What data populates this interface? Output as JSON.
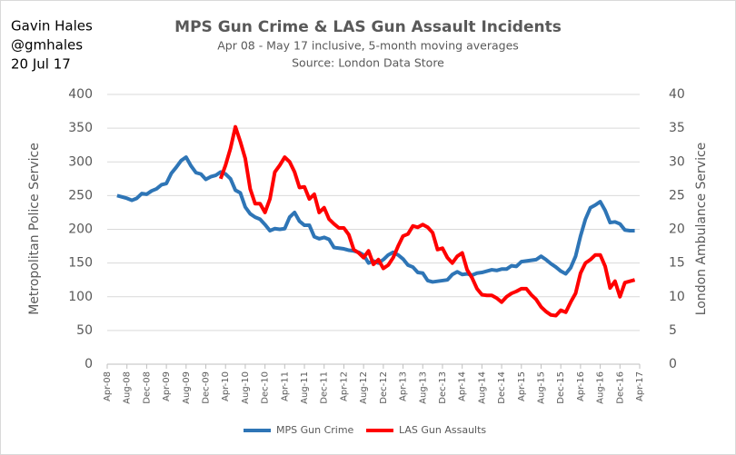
{
  "chart_data": {
    "type": "line",
    "title": "MPS Gun Crime & LAS Gun Assault Incidents",
    "subtitle": [
      "Apr 08 - May 17 inclusive, 5-month moving averages",
      "Source: London Data Store"
    ],
    "author": [
      "Gavin Hales",
      "@gmhales",
      "20 Jul 17"
    ],
    "ylabel": "Metropolitan Police Service",
    "y2label": "London Ambulance Service",
    "categories": [
      "Apr-08",
      null,
      null,
      null,
      "Aug-08",
      null,
      null,
      null,
      "Dec-08",
      null,
      null,
      null,
      "Apr-09",
      null,
      null,
      null,
      "Aug-09",
      null,
      null,
      null,
      "Dec-09",
      null,
      null,
      null,
      "Apr-10",
      null,
      null,
      null,
      "Aug-10",
      null,
      null,
      null,
      "Dec-10",
      null,
      null,
      null,
      "Apr-11",
      null,
      null,
      null,
      "Aug-11",
      null,
      null,
      null,
      "Dec-11",
      null,
      null,
      null,
      "Apr-12",
      null,
      null,
      null,
      "Aug-12",
      null,
      null,
      null,
      "Dec-12",
      null,
      null,
      null,
      "Apr-13",
      null,
      null,
      null,
      "Aug-13",
      null,
      null,
      null,
      "Dec-13",
      null,
      null,
      null,
      "Apr-14",
      null,
      null,
      null,
      "Aug-14",
      null,
      null,
      null,
      "Dec-14",
      null,
      null,
      null,
      "Apr-15",
      null,
      null,
      null,
      "Aug-15",
      null,
      null,
      null,
      "Dec-15",
      null,
      null,
      null,
      "Apr-16",
      null,
      null,
      null,
      "Aug-16",
      null,
      null,
      null,
      "Dec-16",
      null,
      null,
      null,
      "Apr-17"
    ],
    "series": [
      {
        "name": "MPS Gun Crime",
        "color": "#2e75b6",
        "axis": "y",
        "values": [
          null,
          null,
          250,
          248,
          246,
          243,
          246,
          253,
          252,
          257,
          260,
          266,
          268,
          283,
          292,
          302,
          307,
          294,
          284,
          282,
          274,
          278,
          280,
          285,
          282,
          275,
          258,
          254,
          233,
          223,
          218,
          215,
          207,
          198,
          201,
          200,
          201,
          218,
          225,
          212,
          206,
          206,
          189,
          186,
          188,
          185,
          173,
          172,
          171,
          169,
          168,
          166,
          162,
          150,
          153,
          150,
          155,
          162,
          166,
          162,
          156,
          147,
          144,
          136,
          135,
          124,
          122,
          123,
          124,
          125,
          133,
          137,
          133,
          134,
          132,
          135,
          136,
          138,
          140,
          139,
          141,
          141,
          146,
          145,
          152,
          153,
          154,
          155,
          160,
          155,
          149,
          144,
          138,
          134,
          143,
          160,
          190,
          215,
          232,
          236,
          241,
          228,
          210,
          211,
          208,
          199,
          198,
          198,
          null
        ]
      },
      {
        "name": "LAS Gun Assaults",
        "color": "#ff0000",
        "axis": "y2",
        "values": [
          null,
          null,
          null,
          null,
          null,
          null,
          null,
          null,
          null,
          null,
          null,
          null,
          null,
          null,
          null,
          null,
          null,
          null,
          null,
          null,
          null,
          null,
          null,
          27.5,
          29.5,
          32,
          35.2,
          33,
          30.5,
          26,
          23.8,
          23.8,
          22.5,
          24.5,
          28.5,
          29.5,
          30.7,
          30,
          28.5,
          26.2,
          26.3,
          24.5,
          25.2,
          22.5,
          23.2,
          21.5,
          20.8,
          20.2,
          20.2,
          19.2,
          17,
          16.5,
          15.8,
          16.8,
          14.8,
          15.5,
          14.2,
          14.7,
          15.8,
          17.5,
          19,
          19.3,
          20.5,
          20.3,
          20.7,
          20.3,
          19.5,
          17,
          17.2,
          15.8,
          15,
          16,
          16.5,
          14,
          12.8,
          11.2,
          10.3,
          10.2,
          10.2,
          9.8,
          9.2,
          10,
          10.5,
          10.8,
          11.2,
          11.2,
          10.3,
          9.6,
          8.5,
          7.8,
          7.3,
          7.2,
          8,
          7.7,
          9.2,
          10.5,
          13.5,
          15,
          15.5,
          16.2,
          16.2,
          14.5,
          11.3,
          12.3,
          10,
          12.1,
          12.3,
          12.5,
          null
        ]
      }
    ],
    "ylim": [
      0,
      400
    ],
    "yticks": [
      0,
      50,
      100,
      150,
      200,
      250,
      300,
      350,
      400
    ],
    "y2lim": [
      0,
      40
    ],
    "y2ticks": [
      0,
      5,
      10,
      15,
      20,
      25,
      30,
      35,
      40
    ],
    "grid": true,
    "legend": "bottom"
  }
}
